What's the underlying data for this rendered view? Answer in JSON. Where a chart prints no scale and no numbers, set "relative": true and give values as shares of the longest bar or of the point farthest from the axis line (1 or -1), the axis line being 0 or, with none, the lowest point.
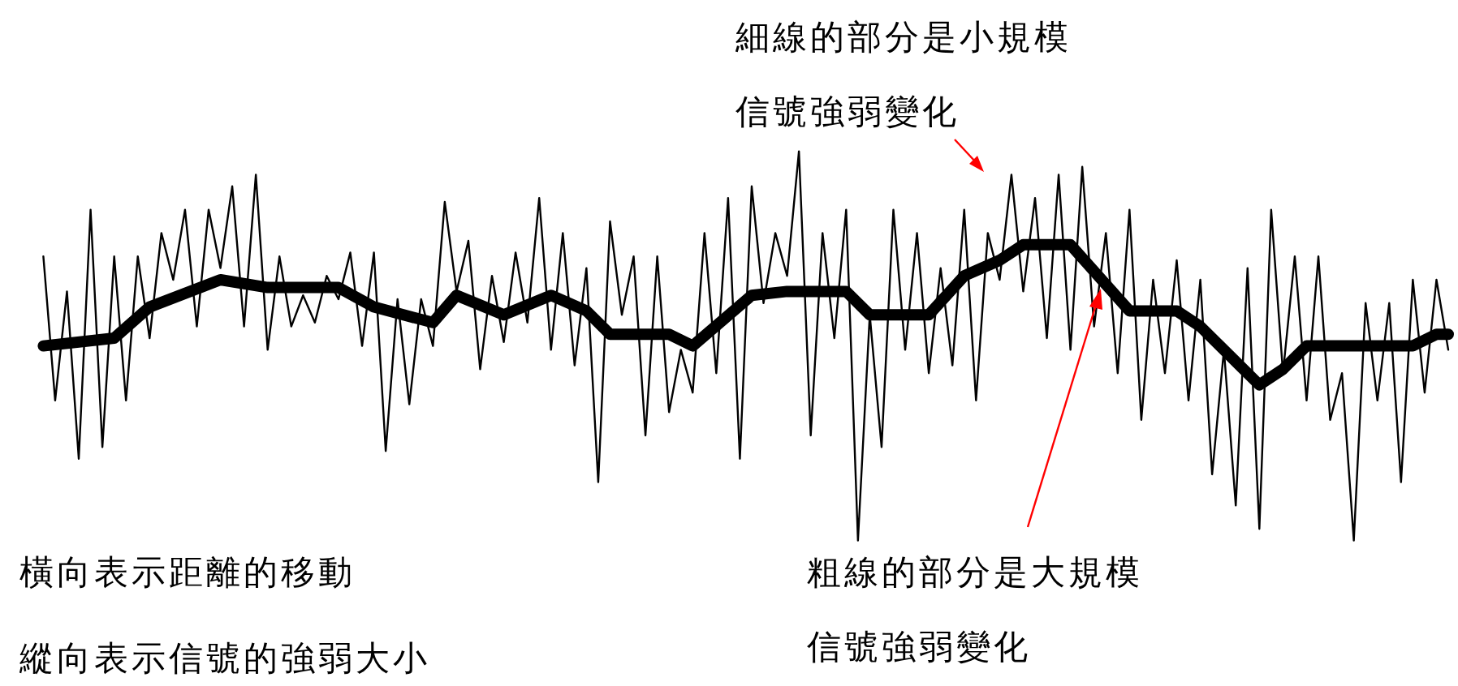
{
  "chart_data": {
    "type": "line",
    "relative": true,
    "legend": false,
    "tick_labels": false,
    "marker": "none",
    "line_style": "solid",
    "categories": [
      null,
      null,
      null,
      null,
      null,
      null,
      null,
      null,
      null,
      null,
      null,
      null,
      null,
      null,
      null,
      null,
      null,
      null,
      null,
      null,
      null,
      null,
      null,
      null,
      null,
      null,
      null,
      null,
      null,
      null,
      null,
      null,
      null,
      null,
      null,
      null,
      null,
      null,
      null,
      null,
      null,
      null,
      null,
      null,
      null,
      null,
      null,
      null,
      null,
      null,
      null,
      null,
      null,
      null,
      null,
      null,
      null,
      null,
      null,
      null,
      null,
      null,
      null,
      null,
      null,
      null,
      null,
      null,
      null,
      null,
      null,
      null,
      null,
      null,
      null,
      null,
      null,
      null,
      null,
      null,
      null,
      null,
      null,
      null,
      null,
      null,
      null,
      null,
      null,
      null,
      null,
      null,
      null,
      null,
      null,
      null,
      null,
      null,
      null,
      null,
      null,
      null,
      null,
      null,
      null,
      null,
      null,
      null,
      null,
      null,
      null,
      null,
      null,
      null,
      null,
      null,
      null,
      null,
      null,
      null
    ],
    "annotations": [
      "細線的部分是小規模信號強弱變化",
      "粗線的部分是大規模信號強弱變化",
      "橫向表示距離的移動",
      "縱向表示信號的強弱大小"
    ],
    "series": [
      {
        "color": "#000000",
        "values": [
          0.73,
          0.36,
          0.64,
          0.21,
          0.85,
          0.24,
          0.73,
          0.36,
          0.73,
          0.52,
          0.79,
          0.67,
          0.85,
          0.55,
          0.85,
          0.7,
          0.91,
          0.55,
          0.94,
          0.49,
          0.73,
          0.55,
          0.63,
          0.56,
          0.68,
          0.62,
          0.74,
          0.5,
          0.74,
          0.23,
          0.62,
          0.35,
          0.62,
          0.5,
          0.87,
          0.64,
          0.77,
          0.44,
          0.68,
          0.51,
          0.74,
          0.56,
          0.88,
          0.49,
          0.79,
          0.45,
          0.7,
          0.15,
          0.82,
          0.58,
          0.73,
          0.27,
          0.73,
          0.33,
          0.49,
          0.38,
          0.79,
          0.43,
          0.88,
          0.21,
          0.91,
          0.61,
          0.79,
          0.68,
          1.0,
          0.27,
          0.79,
          0.52,
          0.85,
          0.0,
          0.58,
          0.24,
          0.85,
          0.49,
          0.79,
          0.43,
          0.7,
          0.45,
          0.85,
          0.36,
          0.79,
          0.67,
          0.94,
          0.64,
          0.88,
          0.52,
          0.94,
          0.49,
          0.96,
          0.55,
          0.79,
          0.43,
          0.85,
          0.31,
          0.67,
          0.43,
          0.72,
          0.36,
          0.67,
          0.17,
          0.49,
          0.09,
          0.7,
          0.03,
          0.85,
          0.43,
          0.73,
          0.36,
          0.73,
          0.31,
          0.43,
          0.0,
          0.61,
          0.36,
          0.61,
          0.15,
          0.67,
          0.38,
          0.67,
          0.49
        ]
      },
      {
        "color": "#000000",
        "values": [
          0.5,
          null,
          null,
          null,
          null,
          null,
          0.52,
          null,
          null,
          0.6,
          null,
          null,
          null,
          null,
          null,
          0.67,
          null,
          null,
          null,
          0.65,
          null,
          null,
          null,
          null,
          null,
          0.65,
          null,
          null,
          0.6,
          null,
          null,
          null,
          null,
          0.56,
          null,
          0.63,
          null,
          null,
          null,
          0.58,
          null,
          null,
          null,
          0.63,
          null,
          null,
          0.59,
          null,
          0.53,
          null,
          null,
          null,
          null,
          0.53,
          null,
          0.5,
          null,
          null,
          null,
          null,
          0.63,
          null,
          null,
          0.64,
          null,
          null,
          null,
          null,
          0.64,
          null,
          0.58,
          null,
          null,
          null,
          null,
          0.58,
          null,
          null,
          0.68,
          null,
          null,
          0.72,
          null,
          0.76,
          null,
          null,
          null,
          0.76,
          null,
          null,
          null,
          null,
          0.59,
          null,
          null,
          null,
          0.59,
          null,
          0.55,
          null,
          null,
          null,
          null,
          0.4,
          null,
          0.44,
          null,
          0.5,
          null,
          null,
          null,
          null,
          null,
          null,
          null,
          null,
          0.5,
          null,
          0.53,
          0.53
        ]
      }
    ]
  }
}
